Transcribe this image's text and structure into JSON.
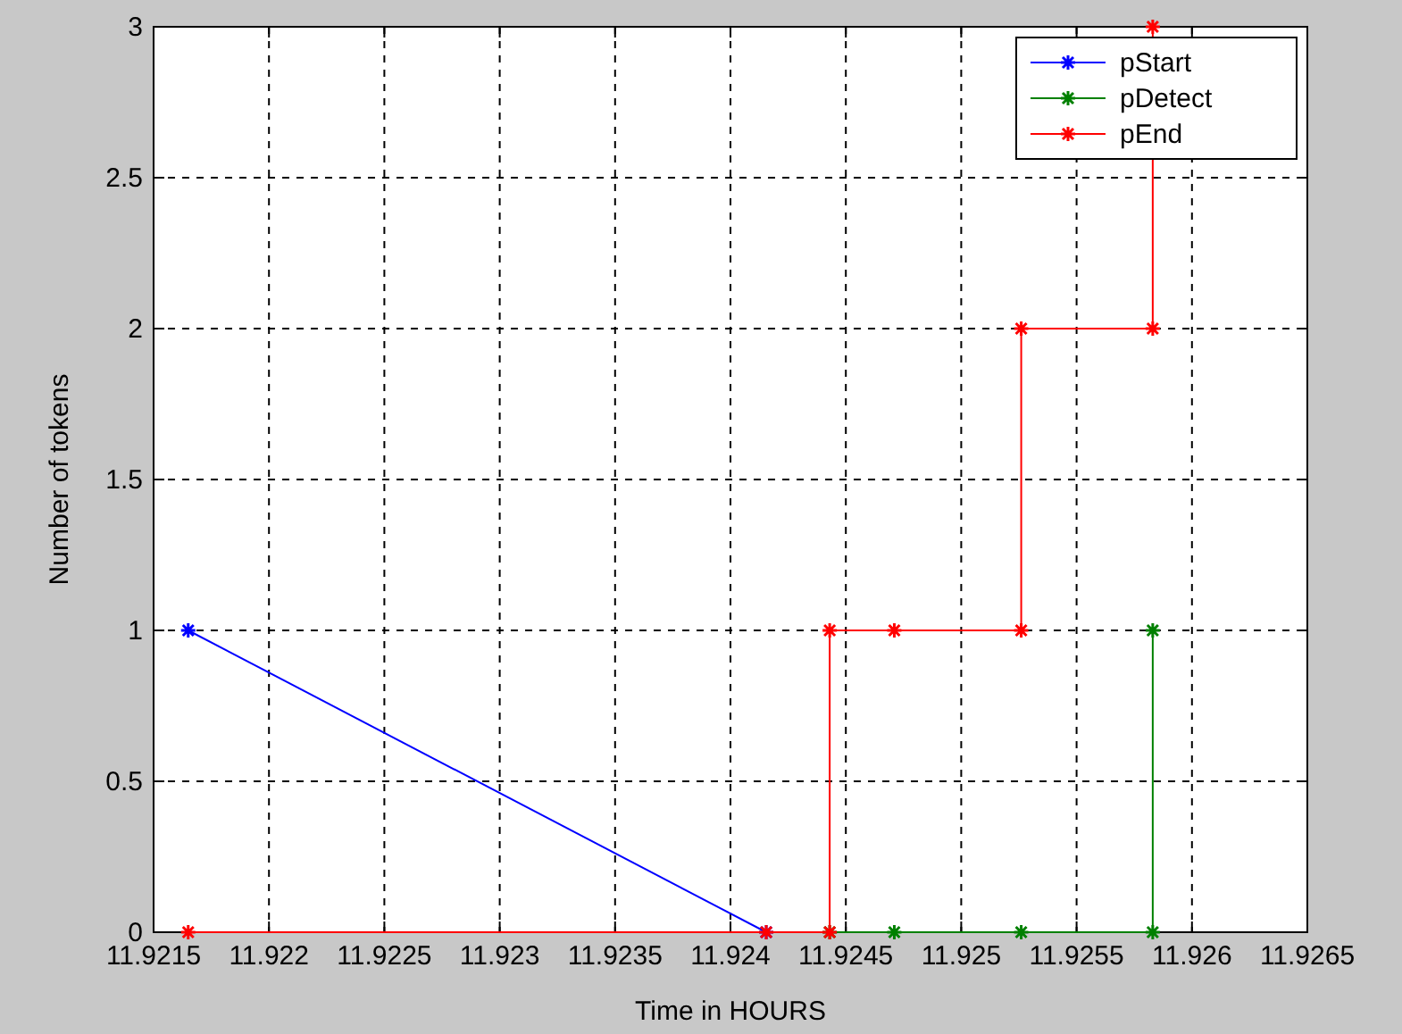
{
  "chart_data": {
    "type": "line",
    "xlabel": "Time in HOURS",
    "ylabel": "Number of tokens",
    "xlim": [
      11.9215,
      11.9265
    ],
    "xticks": [
      11.9215,
      11.922,
      11.9225,
      11.923,
      11.9235,
      11.924,
      11.9245,
      11.925,
      11.9255,
      11.926,
      11.9265
    ],
    "ylim": [
      0,
      3
    ],
    "yticks": [
      0,
      0.5,
      1,
      1.5,
      2,
      2.5,
      3
    ],
    "grid": true,
    "legend": "top right",
    "marker": "cross",
    "series": [
      {
        "name": "pStart",
        "color": "#0000ff",
        "x": [
          11.92165,
          11.924155
        ],
        "values": [
          1,
          0
        ]
      },
      {
        "name": "pDetect",
        "color": "#008000",
        "x": [
          11.92443,
          11.92471,
          11.92526,
          11.92583,
          11.92583
        ],
        "values": [
          0,
          0,
          0,
          0,
          1
        ]
      },
      {
        "name": "pEnd",
        "color": "#ff0000",
        "x": [
          11.92165,
          11.924155,
          11.92443,
          11.92443,
          11.92471,
          11.92526,
          11.92526,
          11.92583,
          11.92583
        ],
        "values": [
          0,
          0,
          0,
          1,
          1,
          1,
          2,
          2,
          3
        ]
      }
    ]
  }
}
